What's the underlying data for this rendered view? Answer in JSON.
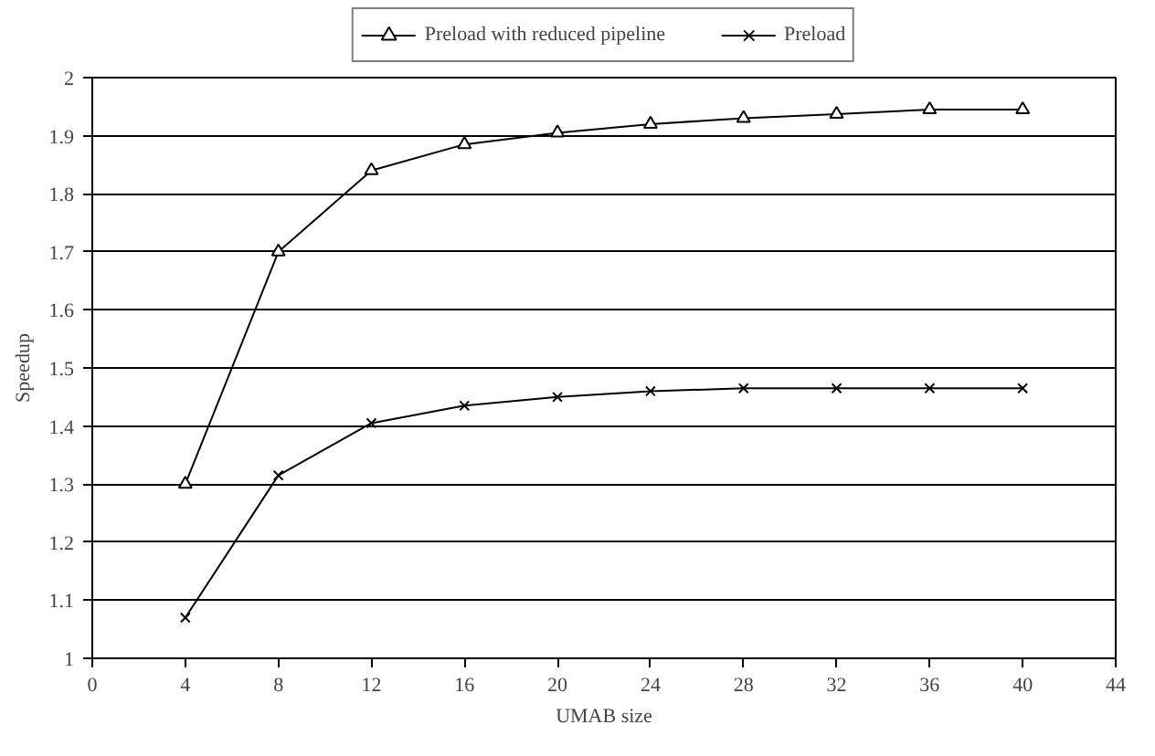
{
  "chart_data": {
    "type": "line",
    "xlabel": "UMAB size",
    "ylabel": "Speedup",
    "x": [
      4,
      8,
      12,
      16,
      20,
      24,
      28,
      32,
      36,
      40
    ],
    "series": [
      {
        "name": "Preload with reduced pipeline",
        "color": "#000000",
        "marker": "triangle",
        "values": [
          1.3,
          1.7,
          1.84,
          1.885,
          1.905,
          1.92,
          1.93,
          1.937,
          1.945,
          1.945
        ]
      },
      {
        "name": "Preload",
        "color": "#000000",
        "marker": "cross",
        "values": [
          1.07,
          1.315,
          1.405,
          1.435,
          1.45,
          1.46,
          1.465,
          1.465,
          1.465,
          1.465
        ]
      }
    ],
    "xlim": [
      0,
      44
    ],
    "xticks": [
      0,
      4,
      8,
      12,
      16,
      20,
      24,
      28,
      32,
      36,
      40,
      44
    ],
    "ylim": [
      1,
      2
    ],
    "yticks": [
      1,
      1.1,
      1.2,
      1.3,
      1.4,
      1.5,
      1.6,
      1.7,
      1.8,
      1.9,
      2
    ],
    "grid": "y",
    "legend": "top",
    "line_style": "solid"
  }
}
